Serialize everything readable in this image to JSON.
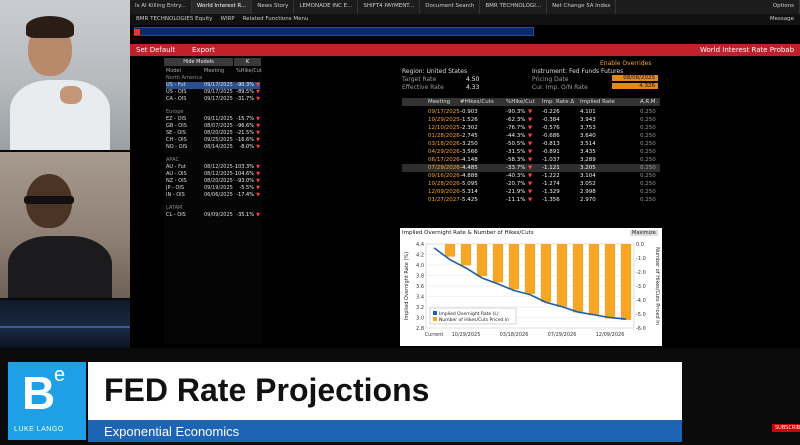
{
  "terminal": {
    "tabs": [
      "Is AI Killing Entry...",
      "World Interest R...",
      "News Story",
      "LEMONADE INC E...",
      "SHIFT4 PAYMENT...",
      "Document Search",
      "BMR TECHNOLOGI...",
      "Net Change 5A Index"
    ],
    "tab_right": [
      "Options",
      "Message"
    ],
    "toolbar": [
      "BMR TECHNOLOGIES Equity",
      "WIRP",
      "Related Functions Menu"
    ],
    "redbar_left": [
      "Set Default",
      "Export"
    ],
    "redbar_right": "World Interest Rate Probab"
  },
  "model_panel": {
    "buttons": [
      "Hide Models",
      "K"
    ],
    "header": [
      "Model",
      "Meeting",
      "%Hike/Cut"
    ],
    "sections": [
      {
        "name": "North America",
        "rows": [
          {
            "model": "US - Fut",
            "meeting": "09/17/2025",
            "pct": "-90.3%",
            "sel": true
          },
          {
            "model": "US - OIS",
            "meeting": "09/17/2025",
            "pct": "-89.5%"
          },
          {
            "model": "CA - OIS",
            "meeting": "09/17/2025",
            "pct": "-31.7%"
          }
        ]
      },
      {
        "name": "Europe",
        "rows": [
          {
            "model": "EZ - OIS",
            "meeting": "09/11/2025",
            "pct": "-15.7%"
          },
          {
            "model": "GB - OIS",
            "meeting": "08/07/2025",
            "pct": "-96.6%"
          },
          {
            "model": "SE - OIS",
            "meeting": "08/20/2025",
            "pct": "-21.5%"
          },
          {
            "model": "CH - OIS",
            "meeting": "09/25/2025",
            "pct": "-16.6%"
          },
          {
            "model": "NO - OIS",
            "meeting": "08/14/2025",
            "pct": "-8.0%"
          }
        ]
      },
      {
        "name": "APAC",
        "rows": [
          {
            "model": "AU - Fut",
            "meeting": "08/12/2025",
            "pct": "-103.3%"
          },
          {
            "model": "AU - OIS",
            "meeting": "08/12/2025",
            "pct": "-104.6%"
          },
          {
            "model": "NZ - OIS",
            "meeting": "08/20/2025",
            "pct": "-93.0%"
          },
          {
            "model": "JP - OIS",
            "meeting": "09/19/2025",
            "pct": "-5.5%"
          },
          {
            "model": "IN - OIS",
            "meeting": "06/06/2025",
            "pct": "-17.4%"
          }
        ]
      },
      {
        "name": "LATAM",
        "rows": [
          {
            "model": "CL - OIS",
            "meeting": "09/09/2025",
            "pct": "-35.1%"
          }
        ]
      }
    ]
  },
  "info": {
    "region": "Region: United States",
    "target_rate_label": "Target Rate",
    "target_rate": "4.50",
    "effective_rate_label": "Effective Rate",
    "effective_rate": "4.33",
    "instrument": "Instrument: Fed Funds Futures",
    "enable_overrides": "Enable Overrides",
    "pricing_date_label": "Pricing Date",
    "pricing_date": "08/08/2025",
    "cur_imp_label": "Cur. Imp. O/N Rate",
    "cur_imp": "4.326"
  },
  "table": {
    "headers": [
      "Meeting",
      "#Hikes/Cuts",
      "%Hike/Cut",
      "Imp. Rate Δ",
      "Implied Rate",
      "A.R.M."
    ],
    "rows": [
      [
        "09/17/2025",
        "-0.903",
        "-90.3%",
        "-0.226",
        "4.101",
        "0.250"
      ],
      [
        "10/29/2025",
        "-1.526",
        "-62.3%",
        "-0.384",
        "3.943",
        "0.250"
      ],
      [
        "12/10/2025",
        "-2.302",
        "-76.7%",
        "-0.576",
        "3.753",
        "0.250"
      ],
      [
        "01/28/2026",
        "-2.745",
        "-44.3%",
        "-0.686",
        "3.640",
        "0.250"
      ],
      [
        "03/18/2026",
        "-3.250",
        "-50.5%",
        "-0.813",
        "3.514",
        "0.250"
      ],
      [
        "04/29/2026",
        "-3.566",
        "-31.5%",
        "-0.891",
        "3.435",
        "0.250"
      ],
      [
        "06/17/2026",
        "-4.148",
        "-58.3%",
        "-1.037",
        "3.289",
        "0.250"
      ],
      [
        "07/29/2026",
        "-4.485",
        "-33.7%",
        "-1.121",
        "3.205",
        "0.250"
      ],
      [
        "09/16/2026",
        "-4.888",
        "-40.3%",
        "-1.222",
        "3.104",
        "0.250"
      ],
      [
        "10/28/2026",
        "-5.095",
        "-20.7%",
        "-1.274",
        "3.052",
        "0.250"
      ],
      [
        "12/09/2026",
        "-5.314",
        "-21.9%",
        "-1.329",
        "2.998",
        "0.250"
      ],
      [
        "01/27/2027",
        "-5.425",
        "-11.1%",
        "-1.356",
        "2.970",
        "0.250"
      ]
    ]
  },
  "chart_title": "Implied Overnight Rate & Number of Hikes/Cuts",
  "chart_button": "Maximize",
  "chart_data": {
    "type": "bar",
    "title": "Implied Overnight Rate & Number of Hikes/Cuts",
    "ylabel": "Implied Overnight Rate (%)",
    "y2label": "Number of Hikes/Cuts Priced In",
    "ylim": [
      2.8,
      4.4
    ],
    "y2lim": [
      -6.0,
      0.0
    ],
    "y_ticks": [
      "4.4",
      "4.2",
      "4.0",
      "3.8",
      "3.6",
      "3.4",
      "3.2",
      "3.0",
      "2.8"
    ],
    "y2_ticks": [
      "0.0",
      "-1.0",
      "-2.0",
      "-3.0",
      "-4.0",
      "-5.0",
      "-6.0"
    ],
    "x_ticks": [
      "Current",
      "10/29/2025",
      "03/18/2026",
      "07/29/2026",
      "12/09/2026"
    ],
    "categories": [
      "Current",
      "09/17/2025",
      "10/29/2025",
      "12/10/2025",
      "01/28/2026",
      "03/18/2026",
      "04/29/2026",
      "06/17/2026",
      "07/29/2026",
      "09/16/2026",
      "10/28/2026",
      "12/09/2026",
      "01/27/2027"
    ],
    "series": [
      {
        "name": "Implied Overnight Rate (L)",
        "type": "line",
        "values": [
          4.326,
          4.101,
          3.943,
          3.753,
          3.64,
          3.514,
          3.435,
          3.289,
          3.205,
          3.104,
          3.052,
          2.998,
          2.97
        ]
      },
      {
        "name": "Number of Hikes/Cuts Priced In",
        "type": "bar",
        "values": [
          0,
          -0.903,
          -1.526,
          -2.302,
          -2.745,
          -3.25,
          -3.566,
          -4.148,
          -4.485,
          -4.888,
          -5.095,
          -5.314,
          -5.425
        ]
      }
    ],
    "legend": "bottom-left",
    "colors": {
      "line": "#1f5fa8",
      "bar": "#f5a623"
    }
  },
  "lower_third": {
    "logo_letter": "B",
    "logo_sup": "e",
    "logo_name": "LUKE LANGO",
    "title": "FED Rate Projections",
    "subtitle": "Exponential Economics",
    "subscribe": "SUBSCRIBE"
  },
  "colors": {
    "bloomberg_red": "#c0202a",
    "amber": "#f5a623",
    "brand_blue": "#1da0e6",
    "sub_blue": "#1e64b4"
  }
}
